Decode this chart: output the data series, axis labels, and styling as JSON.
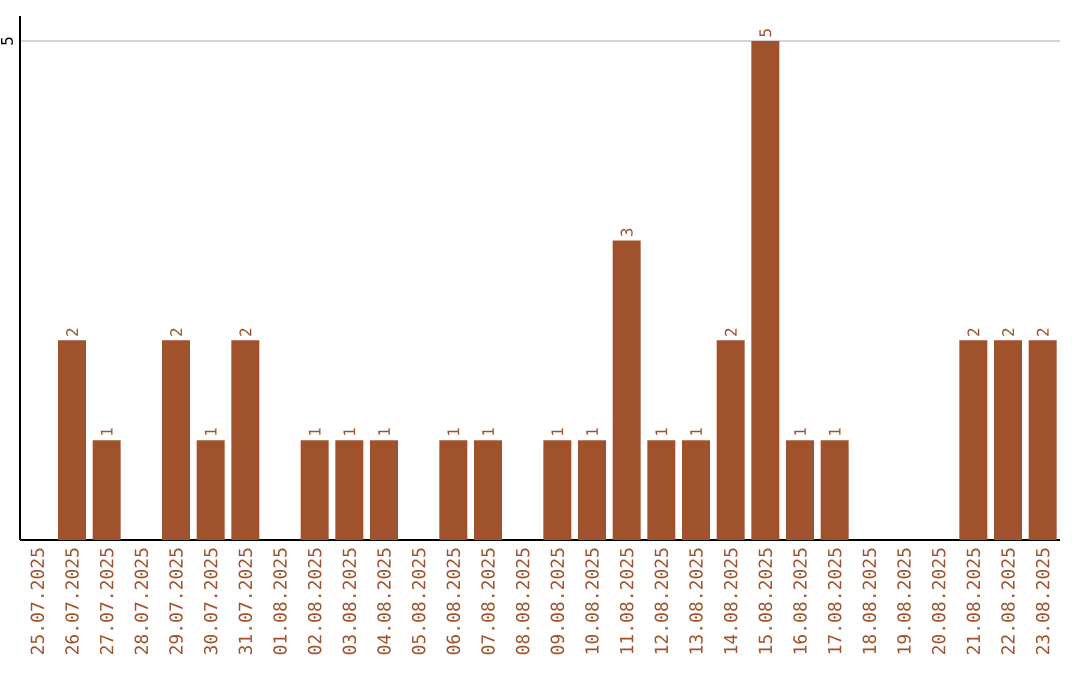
{
  "chart_data": {
    "type": "bar",
    "color": "#a0522d",
    "categories": [
      "25.07.2025",
      "26.07.2025",
      "27.07.2025",
      "28.07.2025",
      "29.07.2025",
      "30.07.2025",
      "31.07.2025",
      "01.08.2025",
      "02.08.2025",
      "03.08.2025",
      "04.08.2025",
      "05.08.2025",
      "06.08.2025",
      "07.08.2025",
      "08.08.2025",
      "09.08.2025",
      "10.08.2025",
      "11.08.2025",
      "12.08.2025",
      "13.08.2025",
      "14.08.2025",
      "15.08.2025",
      "16.08.2025",
      "17.08.2025",
      "18.08.2025",
      "19.08.2025",
      "20.08.2025",
      "21.08.2025",
      "22.08.2025",
      "23.08.2025"
    ],
    "values": [
      0,
      2,
      1,
      0,
      2,
      1,
      2,
      0,
      1,
      1,
      1,
      0,
      1,
      1,
      0,
      1,
      1,
      3,
      1,
      1,
      2,
      5,
      1,
      1,
      0,
      0,
      0,
      2,
      2,
      2
    ],
    "value_labels": [
      null,
      "2",
      "1",
      null,
      "2",
      "1",
      "2",
      null,
      "1",
      "1",
      "1",
      null,
      "1",
      "1",
      null,
      "1",
      "1",
      "3",
      "1",
      "1",
      "2",
      "5",
      "1",
      "1",
      null,
      null,
      null,
      "2",
      "2",
      "2"
    ],
    "ylim": [
      0,
      5.25
    ],
    "yticks": [
      5
    ],
    "grid": "y"
  }
}
